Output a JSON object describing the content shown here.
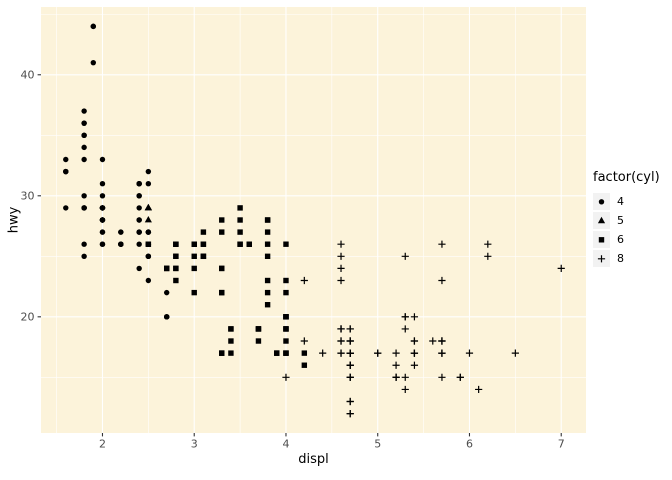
{
  "chart_data": {
    "type": "scatter",
    "title": "",
    "xlabel": "displ",
    "ylabel": "hwy",
    "xlim": [
      1.33,
      7.27
    ],
    "ylim": [
      10.4,
      45.6
    ],
    "x_major_ticks": [
      2,
      3,
      4,
      5,
      6,
      7
    ],
    "x_minor_ticks": [
      1.5,
      2.5,
      3.5,
      4.5,
      5.5,
      6.5
    ],
    "y_major_ticks": [
      20,
      30,
      40
    ],
    "y_minor_ticks": [
      15,
      25,
      35,
      45
    ],
    "grid": "on",
    "panel_background": "#FCF3DA",
    "grid_color": "#FFFFFF",
    "point_color": "#000000",
    "tick_label_color": "#4D4D4D",
    "tick_color": "#333333",
    "legend": {
      "title": "factor(cyl)",
      "position": "right",
      "key_background": "#F2F2F2",
      "items": [
        {
          "label": "4",
          "shape": "circle",
          "glyph": "●"
        },
        {
          "label": "5",
          "shape": "triangle",
          "glyph": "▲"
        },
        {
          "label": "6",
          "shape": "square",
          "glyph": "■"
        },
        {
          "label": "8",
          "shape": "plus",
          "glyph": "+"
        }
      ]
    },
    "series": [
      {
        "name": "4",
        "shape": "circle",
        "points": [
          [
            1.6,
            33
          ],
          [
            1.6,
            32
          ],
          [
            1.6,
            32
          ],
          [
            1.6,
            32
          ],
          [
            1.6,
            29
          ],
          [
            1.8,
            29
          ],
          [
            1.8,
            29
          ],
          [
            1.8,
            26
          ],
          [
            1.8,
            25
          ],
          [
            1.8,
            34
          ],
          [
            1.8,
            36
          ],
          [
            1.8,
            36
          ],
          [
            1.8,
            30
          ],
          [
            1.8,
            33
          ],
          [
            1.8,
            35
          ],
          [
            1.8,
            37
          ],
          [
            1.8,
            35
          ],
          [
            1.8,
            29
          ],
          [
            1.8,
            29
          ],
          [
            1.9,
            44
          ],
          [
            1.9,
            44
          ],
          [
            1.9,
            41
          ],
          [
            2.0,
            31
          ],
          [
            2.0,
            30
          ],
          [
            2.0,
            28
          ],
          [
            2.0,
            27
          ],
          [
            2.0,
            29
          ],
          [
            2.0,
            26
          ],
          [
            2.0,
            27
          ],
          [
            2.0,
            28
          ],
          [
            2.0,
            29
          ],
          [
            2.0,
            29
          ],
          [
            2.0,
            29
          ],
          [
            2.0,
            28
          ],
          [
            2.0,
            29
          ],
          [
            2.0,
            33
          ],
          [
            2.0,
            29
          ],
          [
            2.0,
            26
          ],
          [
            2.0,
            28
          ],
          [
            2.0,
            28
          ],
          [
            2.0,
            29
          ],
          [
            2.2,
            26
          ],
          [
            2.2,
            26
          ],
          [
            2.2,
            26
          ],
          [
            2.2,
            27
          ],
          [
            2.2,
            26
          ],
          [
            2.2,
            27
          ],
          [
            2.4,
            27
          ],
          [
            2.4,
            30
          ],
          [
            2.4,
            24
          ],
          [
            2.4,
            26
          ],
          [
            2.4,
            27
          ],
          [
            2.4,
            30
          ],
          [
            2.4,
            31
          ],
          [
            2.4,
            29
          ],
          [
            2.4,
            27
          ],
          [
            2.4,
            28
          ],
          [
            2.4,
            31
          ],
          [
            2.4,
            28
          ],
          [
            2.4,
            31
          ],
          [
            2.5,
            31
          ],
          [
            2.5,
            32
          ],
          [
            2.5,
            26
          ],
          [
            2.5,
            27
          ],
          [
            2.5,
            25
          ],
          [
            2.5,
            27
          ],
          [
            2.5,
            26
          ],
          [
            2.5,
            23
          ],
          [
            2.5,
            26
          ],
          [
            2.5,
            26
          ],
          [
            2.5,
            25
          ],
          [
            2.5,
            27
          ],
          [
            2.5,
            25
          ],
          [
            2.5,
            27
          ],
          [
            2.7,
            20
          ],
          [
            2.7,
            20
          ],
          [
            2.7,
            20
          ],
          [
            2.7,
            22
          ]
        ]
      },
      {
        "name": "5",
        "shape": "triangle",
        "points": [
          [
            2.5,
            29
          ],
          [
            2.5,
            29
          ],
          [
            2.5,
            28
          ],
          [
            2.5,
            29
          ]
        ]
      },
      {
        "name": "6",
        "shape": "square",
        "points": [
          [
            2.5,
            26
          ],
          [
            2.5,
            26
          ],
          [
            2.7,
            24
          ],
          [
            2.7,
            24
          ],
          [
            2.7,
            24
          ],
          [
            2.8,
            26
          ],
          [
            2.8,
            26
          ],
          [
            2.8,
            25
          ],
          [
            2.8,
            25
          ],
          [
            2.8,
            24
          ],
          [
            2.8,
            23
          ],
          [
            2.8,
            24
          ],
          [
            2.8,
            26
          ],
          [
            3.0,
            24
          ],
          [
            3.0,
            22
          ],
          [
            3.0,
            26
          ],
          [
            3.0,
            25
          ],
          [
            3.0,
            26
          ],
          [
            3.0,
            26
          ],
          [
            3.0,
            26
          ],
          [
            3.1,
            27
          ],
          [
            3.1,
            25
          ],
          [
            3.1,
            25
          ],
          [
            3.1,
            25
          ],
          [
            3.1,
            26
          ],
          [
            3.1,
            26
          ],
          [
            3.3,
            22
          ],
          [
            3.3,
            22
          ],
          [
            3.3,
            24
          ],
          [
            3.3,
            24
          ],
          [
            3.3,
            17
          ],
          [
            3.3,
            28
          ],
          [
            3.3,
            17
          ],
          [
            3.3,
            17
          ],
          [
            3.3,
            27
          ],
          [
            3.4,
            19
          ],
          [
            3.4,
            17
          ],
          [
            3.4,
            19
          ],
          [
            3.4,
            18
          ],
          [
            3.5,
            29
          ],
          [
            3.5,
            27
          ],
          [
            3.5,
            26
          ],
          [
            3.5,
            26
          ],
          [
            3.5,
            28
          ],
          [
            3.6,
            26
          ],
          [
            3.6,
            26
          ],
          [
            3.6,
            26
          ],
          [
            3.7,
            19
          ],
          [
            3.7,
            18
          ],
          [
            3.7,
            19
          ],
          [
            3.7,
            19
          ],
          [
            3.8,
            22
          ],
          [
            3.8,
            21
          ],
          [
            3.8,
            23
          ],
          [
            3.8,
            26
          ],
          [
            3.8,
            25
          ],
          [
            3.8,
            28
          ],
          [
            3.8,
            27
          ],
          [
            3.8,
            28
          ],
          [
            3.9,
            17
          ],
          [
            3.9,
            17
          ],
          [
            3.9,
            17
          ],
          [
            4.0,
            23
          ],
          [
            4.0,
            17
          ],
          [
            4.0,
            17
          ],
          [
            4.0,
            19
          ],
          [
            4.0,
            19
          ],
          [
            4.0,
            26
          ],
          [
            4.0,
            20
          ],
          [
            4.0,
            17
          ],
          [
            4.0,
            19
          ],
          [
            4.0,
            18
          ],
          [
            4.0,
            20
          ],
          [
            4.0,
            20
          ],
          [
            4.0,
            22
          ],
          [
            4.0,
            20
          ],
          [
            4.2,
            17
          ],
          [
            4.2,
            16
          ]
        ]
      },
      {
        "name": "8",
        "shape": "plus",
        "points": [
          [
            4.0,
            15
          ],
          [
            4.2,
            23
          ],
          [
            4.2,
            18
          ],
          [
            4.4,
            17
          ],
          [
            4.6,
            17
          ],
          [
            4.6,
            19
          ],
          [
            4.6,
            18
          ],
          [
            4.6,
            17
          ],
          [
            4.6,
            19
          ],
          [
            4.6,
            24
          ],
          [
            4.6,
            25
          ],
          [
            4.6,
            26
          ],
          [
            4.6,
            23
          ],
          [
            4.6,
            18
          ],
          [
            4.6,
            19
          ],
          [
            4.7,
            19
          ],
          [
            4.7,
            19
          ],
          [
            4.7,
            12
          ],
          [
            4.7,
            17
          ],
          [
            4.7,
            12
          ],
          [
            4.7,
            17
          ],
          [
            4.7,
            16
          ],
          [
            4.7,
            18
          ],
          [
            4.7,
            17
          ],
          [
            4.7,
            15
          ],
          [
            4.7,
            13
          ],
          [
            4.7,
            13
          ],
          [
            4.7,
            17
          ],
          [
            4.7,
            16
          ],
          [
            4.7,
            16
          ],
          [
            4.7,
            15
          ],
          [
            4.7,
            17
          ],
          [
            4.7,
            15
          ],
          [
            4.7,
            17
          ],
          [
            4.7,
            16
          ],
          [
            4.7,
            18
          ],
          [
            4.7,
            17
          ],
          [
            4.7,
            18
          ],
          [
            4.7,
            17
          ],
          [
            5.0,
            17
          ],
          [
            5.0,
            17
          ],
          [
            5.2,
            17
          ],
          [
            5.2,
            15
          ],
          [
            5.2,
            15
          ],
          [
            5.2,
            15
          ],
          [
            5.2,
            16
          ],
          [
            5.3,
            20
          ],
          [
            5.3,
            15
          ],
          [
            5.3,
            20
          ],
          [
            5.3,
            19
          ],
          [
            5.3,
            14
          ],
          [
            5.3,
            25
          ],
          [
            5.4,
            17
          ],
          [
            5.4,
            18
          ],
          [
            5.4,
            17
          ],
          [
            5.4,
            20
          ],
          [
            5.4,
            17
          ],
          [
            5.4,
            16
          ],
          [
            5.4,
            18
          ],
          [
            5.6,
            18
          ],
          [
            5.7,
            17
          ],
          [
            5.7,
            17
          ],
          [
            5.7,
            26
          ],
          [
            5.7,
            23
          ],
          [
            5.7,
            15
          ],
          [
            5.7,
            18
          ],
          [
            5.7,
            18
          ],
          [
            5.7,
            18
          ],
          [
            5.7,
            17
          ],
          [
            5.9,
            15
          ],
          [
            5.9,
            15
          ],
          [
            6.0,
            17
          ],
          [
            6.1,
            14
          ],
          [
            6.2,
            26
          ],
          [
            6.2,
            25
          ],
          [
            6.5,
            17
          ],
          [
            7.0,
            24
          ]
        ]
      }
    ]
  }
}
